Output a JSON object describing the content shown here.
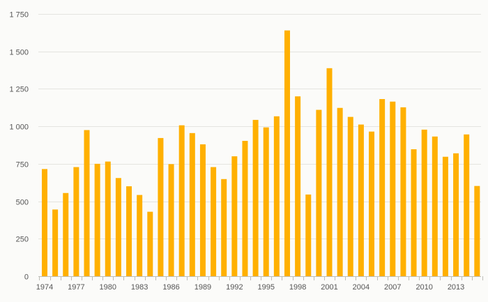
{
  "chart_data": {
    "type": "bar",
    "categories": [
      "1974",
      "1975",
      "1976",
      "1977",
      "1978",
      "1979",
      "1980",
      "1981",
      "1982",
      "1983",
      "1984",
      "1985",
      "1986",
      "1987",
      "1988",
      "1989",
      "1990",
      "1991",
      "1992",
      "1993",
      "1994",
      "1995",
      "1996",
      "1997",
      "1998",
      "1999",
      "2000",
      "2001",
      "2002",
      "2003",
      "2004",
      "2005",
      "2006",
      "2007",
      "2008",
      "2009",
      "2010",
      "2011",
      "2012",
      "2013",
      "2014",
      "2015"
    ],
    "values": [
      715,
      445,
      555,
      728,
      975,
      750,
      765,
      655,
      600,
      542,
      430,
      922,
      748,
      1007,
      955,
      880,
      728,
      648,
      800,
      903,
      1043,
      993,
      1067,
      1640,
      1200,
      545,
      1110,
      1388,
      1123,
      1063,
      1012,
      965,
      1182,
      1165,
      1127,
      847,
      978,
      932,
      797,
      820,
      946,
      602
    ],
    "x_tick_labels": [
      "1974",
      "1977",
      "1980",
      "1983",
      "1986",
      "1989",
      "1992",
      "1995",
      "1998",
      "2001",
      "2004",
      "2007",
      "2010",
      "2013"
    ],
    "y_ticks": [
      0,
      250,
      500,
      750,
      1000,
      1250,
      1500,
      1750
    ],
    "y_tick_labels": [
      "0",
      "250",
      "500",
      "750",
      "1 000",
      "1 250",
      "1 500",
      "1 750"
    ],
    "ylim": [
      0,
      1750
    ],
    "title": "",
    "xlabel": "",
    "ylabel": "",
    "grid": true,
    "bar_color": "#ffb000"
  }
}
